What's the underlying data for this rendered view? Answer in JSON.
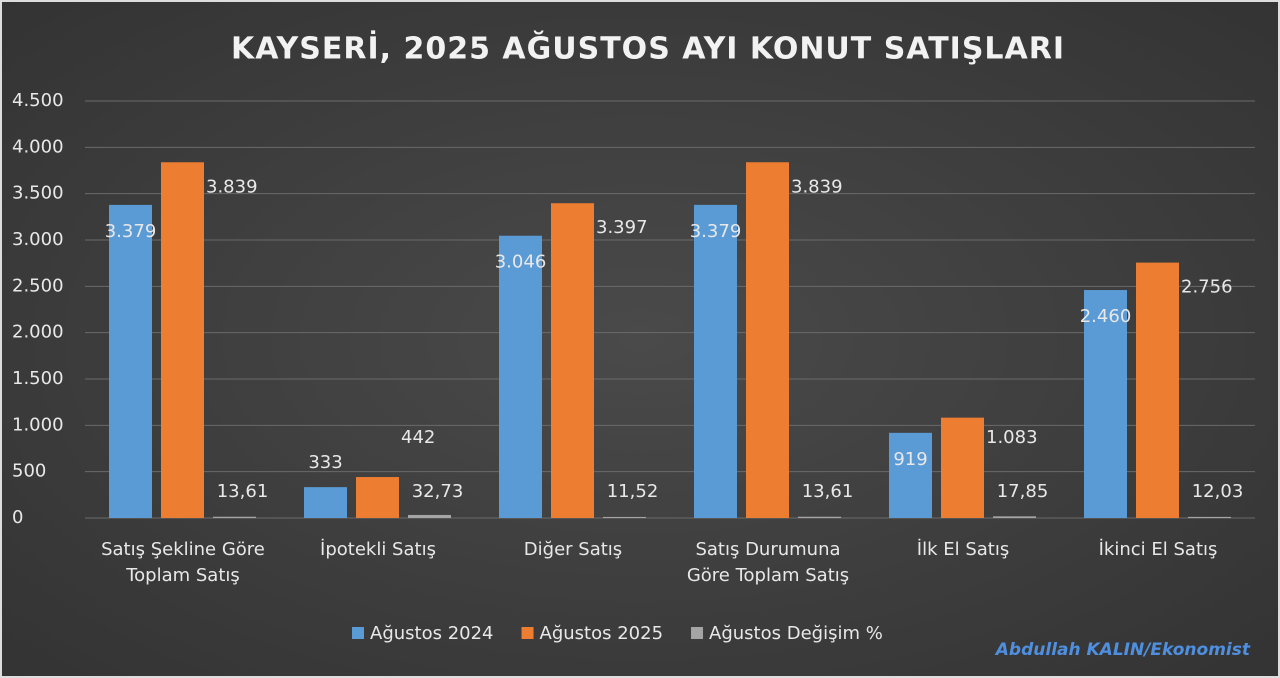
{
  "chart_data": {
    "type": "bar",
    "title": "KAYSERİ, 2025 AĞUSTOS AYI KONUT SATIŞLARI",
    "categories": [
      "Satış Şekline Göre Toplam Satış",
      "İpotekli Satış",
      "Diğer Satış",
      "Satış Durumuna Göre Toplam Satış",
      "İlk El Satış",
      "İkinci El Satış"
    ],
    "series": [
      {
        "name": "Ağustos 2024",
        "color": "#5b9bd5",
        "values": [
          3379,
          333,
          3046,
          3379,
          919,
          2460
        ],
        "value_labels": [
          "3.379",
          "333",
          "3.046",
          "3.379",
          "919",
          "2.460"
        ]
      },
      {
        "name": "Ağustos 2025",
        "color": "#ed7d31",
        "values": [
          3839,
          442,
          3397,
          3839,
          1083,
          2756
        ],
        "value_labels": [
          "3.839",
          "442",
          "3.397",
          "3.839",
          "1.083",
          "2.756"
        ]
      },
      {
        "name": "Ağustos Değişim %",
        "color": "#a5a5a5",
        "values": [
          13.61,
          32.73,
          11.52,
          13.61,
          17.85,
          12.03
        ],
        "value_labels": [
          "13,61",
          "32,73",
          "11,52",
          "13,61",
          "17,85",
          "12,03"
        ]
      }
    ],
    "ylim": [
      0,
      4500
    ],
    "yticks": [
      0,
      500,
      {
        "value": 1000,
        "label": "1.000"
      },
      {
        "value": 1500,
        "label": "1.500"
      },
      {
        "value": 2000,
        "label": "2.000"
      },
      {
        "value": 2500,
        "label": "2.500"
      },
      {
        "value": 3000,
        "label": "3.000"
      },
      {
        "value": 3500,
        "label": "3.500"
      },
      {
        "value": 4000,
        "label": "4.000"
      },
      {
        "value": 4500,
        "label": "4.500"
      }
    ],
    "grid": true,
    "legend": "bottom",
    "annotation": "Abdullah KALIN/Ekonomist"
  }
}
